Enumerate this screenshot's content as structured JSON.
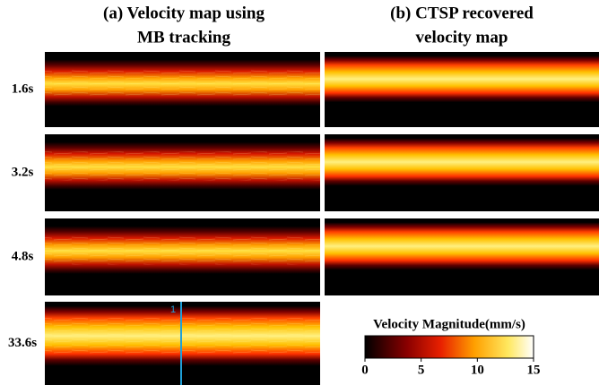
{
  "columns": [
    {
      "lines": [
        "(a) Velocity map using",
        "MB tracking"
      ]
    },
    {
      "lines": [
        "(b) CTSP recovered",
        "velocity map"
      ]
    }
  ],
  "rows": [
    "1.6s",
    "3.2s",
    "4.8s",
    "33.6s"
  ],
  "marker": "1",
  "colorbar": {
    "label": "Velocity Magnitude(mm/s)",
    "lim": [
      0,
      15
    ],
    "ticks": [
      0,
      5,
      10,
      15
    ]
  }
}
